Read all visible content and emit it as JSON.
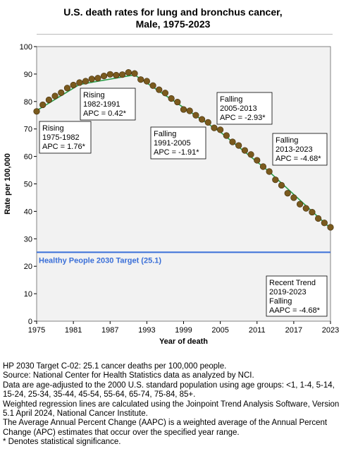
{
  "title_line1": "U.S. death rates for lung and bronchus cancer,",
  "title_line2": "Male,  1975-2023",
  "chart_data": {
    "type": "scatter",
    "title": "U.S. death rates for lung and bronchus cancer, Male, 1975-2023",
    "xlabel": "Year of death",
    "ylabel": "Rate per 100,000",
    "xlim": [
      1975,
      2023
    ],
    "ylim": [
      0,
      100
    ],
    "x_ticks": [
      1975,
      1981,
      1987,
      1993,
      1999,
      2005,
      2011,
      2017,
      2023
    ],
    "y_ticks": [
      0,
      10,
      20,
      30,
      40,
      50,
      60,
      70,
      80,
      90,
      100
    ],
    "grid": false,
    "point_color": "#7a5a1e",
    "trend_color": "#2e9e4a",
    "background_color": "#f2f2f2",
    "target_color": "#3a6fd8",
    "series": [
      {
        "x": [
          1975,
          1976,
          1977,
          1978,
          1979,
          1980,
          1981,
          1982,
          1983,
          1984,
          1985,
          1986,
          1987,
          1988,
          1989,
          1990,
          1991,
          1992,
          1993,
          1994,
          1995,
          1996,
          1997,
          1998,
          1999,
          2000,
          2001,
          2002,
          2003,
          2004,
          2005,
          2006,
          2007,
          2008,
          2009,
          2010,
          2011,
          2012,
          2013,
          2014,
          2015,
          2016,
          2017,
          2018,
          2019,
          2020,
          2021,
          2022,
          2023
        ],
        "y": [
          76.4,
          78.8,
          80.6,
          82.0,
          83.2,
          84.9,
          86.0,
          86.9,
          87.4,
          88.2,
          88.5,
          89.3,
          89.9,
          89.6,
          89.8,
          90.6,
          90.2,
          88.0,
          87.4,
          85.8,
          84.3,
          83.1,
          81.1,
          79.8,
          77.1,
          76.6,
          75.0,
          73.5,
          72.4,
          70.4,
          69.7,
          67.6,
          65.3,
          64.0,
          62.2,
          60.7,
          58.6,
          56.3,
          54.5,
          51.5,
          49.5,
          46.6,
          45.0,
          42.6,
          41.1,
          39.7,
          37.4,
          35.8,
          34.2
        ]
      }
    ],
    "trend_segments": [
      {
        "label": "Rising",
        "years": "1975-1982",
        "apc": "APC =  1.76*",
        "from": [
          1975,
          76.7
        ],
        "to": [
          1982,
          86.2
        ]
      },
      {
        "label": "Rising",
        "years": "1982-1991",
        "apc": "APC =  0.42*",
        "from": [
          1982,
          86.2
        ],
        "to": [
          1991,
          89.7
        ]
      },
      {
        "label": "Falling",
        "years": "1991-2005",
        "apc": "APC = -1.91*",
        "from": [
          1991,
          89.7
        ],
        "to": [
          2005,
          68.9
        ]
      },
      {
        "label": "Falling",
        "years": "2005-2013",
        "apc": "APC = -2.93*",
        "from": [
          2005,
          68.9
        ],
        "to": [
          2013,
          54.4
        ]
      },
      {
        "label": "Falling",
        "years": "2013-2023",
        "apc": "APC = -4.68*",
        "from": [
          2013,
          54.4
        ],
        "to": [
          2023,
          33.8
        ]
      }
    ],
    "target": {
      "value": 25.1,
      "label": "Healthy People 2030 Target (25.1)"
    },
    "recent_trend": {
      "line1": "Recent Trend",
      "line2": "2019-2023",
      "line3": "Falling",
      "line4": "AAPC = -4.68*"
    }
  },
  "footnotes": [
    "HP 2030 Target C-02: 25.1 cancer deaths per 100,000 people.",
    "Source: National Center for Health Statistics data as analyzed by NCI.",
    "Data are age-adjusted to the 2000 U.S. standard population using age groups: <1, 1-4, 5-14, 15-24, 25-34, 35-44, 45-54, 55-64, 65-74, 75-84, 85+.",
    "Weighted regression lines are calculated using the Joinpoint Trend Analysis Software, Version 5.1 April 2024, National Cancer Institute.",
    "The Average Annual Percent Change (AAPC) is a weighted average of the Annual Percent Change (APC) estimates that occur over the specified year range.",
    "* Denotes statistical significance."
  ]
}
